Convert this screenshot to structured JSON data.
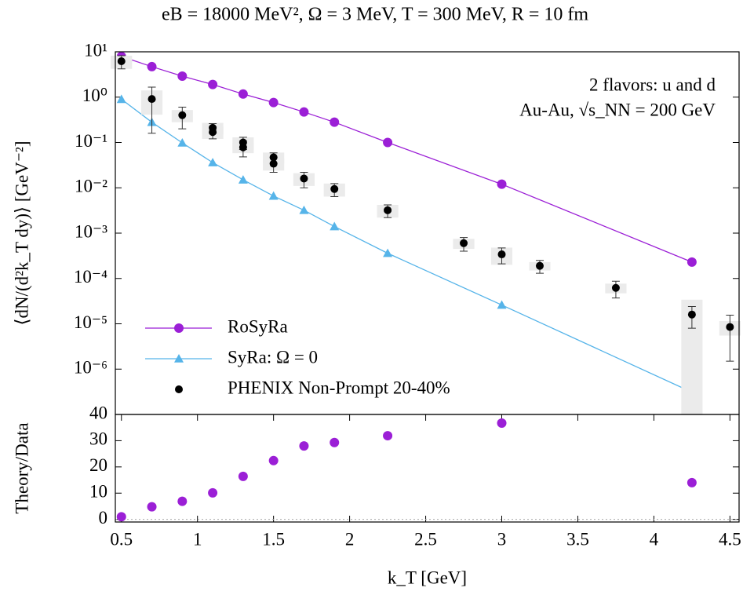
{
  "chart_data": [
    {
      "type": "line",
      "title": "eB = 18000 MeV², Ω = 3 MeV, T = 300 MeV, R = 10 fm",
      "annotations": [
        "2 flavors: u and d",
        "Au-Au, √s_NN = 200 GeV"
      ],
      "ylabel": "⟨dN/(d²k_T dy)⟩ [GeV⁻²]",
      "ylog": true,
      "xlim": [
        0.46,
        4.56
      ],
      "ylim": [
        1e-07,
        10
      ],
      "yticks": [
        {
          "value": 10,
          "label": "10¹"
        },
        {
          "value": 1,
          "label": "10⁰"
        },
        {
          "value": 0.1,
          "label": "10⁻¹"
        },
        {
          "value": 0.01,
          "label": "10⁻²"
        },
        {
          "value": 0.001,
          "label": "10⁻³"
        },
        {
          "value": 0.0001,
          "label": "10⁻⁴"
        },
        {
          "value": 1e-05,
          "label": "10⁻⁵"
        },
        {
          "value": 1e-06,
          "label": "10⁻⁶"
        }
      ],
      "legend": "lower left",
      "series": [
        {
          "name": "RoSyRa",
          "color": "#9b1fd6",
          "marker": "circle",
          "style": "lines+markers",
          "x": [
            0.5,
            0.7,
            0.9,
            1.1,
            1.3,
            1.5,
            1.7,
            1.9,
            2.25,
            3,
            4.25
          ],
          "values": [
            7.9,
            4.7,
            2.9,
            1.9,
            1.17,
            0.76,
            0.47,
            0.28,
            0.1,
            0.012,
            0.00023
          ]
        },
        {
          "name": "SyRa: Ω = 0",
          "color": "#56b4e9",
          "marker": "triangle",
          "style": "lines+markers",
          "x": [
            0.5,
            0.7,
            0.9,
            1.1,
            1.3,
            1.5,
            1.7,
            1.9,
            2.25,
            3,
            4.25
          ],
          "values": [
            0.9,
            0.28,
            0.098,
            0.036,
            0.015,
            0.0066,
            0.0032,
            0.0014,
            0.00036,
            2.6e-05,
            3.1e-07
          ]
        },
        {
          "name": "PHENIX Non-Prompt 20-40%",
          "color": "#000000",
          "marker": "circle",
          "style": "errorbars",
          "x": [
            0.5,
            0.7,
            0.9,
            1.1,
            1.1,
            1.3,
            1.3,
            1.5,
            1.5,
            1.7,
            1.9,
            2.25,
            2.75,
            3,
            3.25,
            3.75,
            4.25,
            4.5
          ],
          "values": [
            6.2,
            0.91,
            0.4,
            0.21,
            0.17,
            0.1,
            0.078,
            0.047,
            0.034,
            0.016,
            0.0094,
            0.0032,
            0.0006,
            0.00034,
            0.00019,
            6.2e-05,
            1.6e-05,
            8.5e-06
          ],
          "errors": [
            2,
            0.75,
            0.2,
            0.05,
            0.05,
            0.03,
            0.03,
            0.012,
            0.012,
            0.006,
            0.003,
            0.001,
            0.0002,
            0.00013,
            6e-05,
            2.5e-05,
            8e-06,
            7e-06
          ],
          "sys_errors": [
            2,
            0.5,
            0.12,
            0.06,
            0.05,
            0.03,
            0.02,
            0.013,
            0.01,
            0.005,
            0.003,
            0.001,
            0.00015,
            0.00014,
            4e-05,
            1.5e-05,
            1.8e-05,
            3e-06
          ]
        }
      ]
    },
    {
      "type": "scatter",
      "ylabel": "Theory/Data",
      "xlabel": "k_T [GeV]",
      "xlim": [
        0.46,
        4.56
      ],
      "xticks": [
        0.5,
        1,
        1.5,
        2,
        2.5,
        3,
        3.5,
        4,
        4.5
      ],
      "ylim": [
        -1,
        40
      ],
      "yticks": [
        0,
        10,
        20,
        30,
        40
      ],
      "zero_line": true,
      "series": [
        {
          "color": "#9b1fd6",
          "marker": "circle",
          "x": [
            0.5,
            0.7,
            0.9,
            1.1,
            1.3,
            1.5,
            1.7,
            1.9,
            2.25,
            3,
            4.25
          ],
          "values": [
            1,
            4.8,
            6.9,
            10.1,
            16.4,
            22.4,
            28,
            29.3,
            31.9,
            36.7,
            14
          ]
        }
      ]
    }
  ]
}
